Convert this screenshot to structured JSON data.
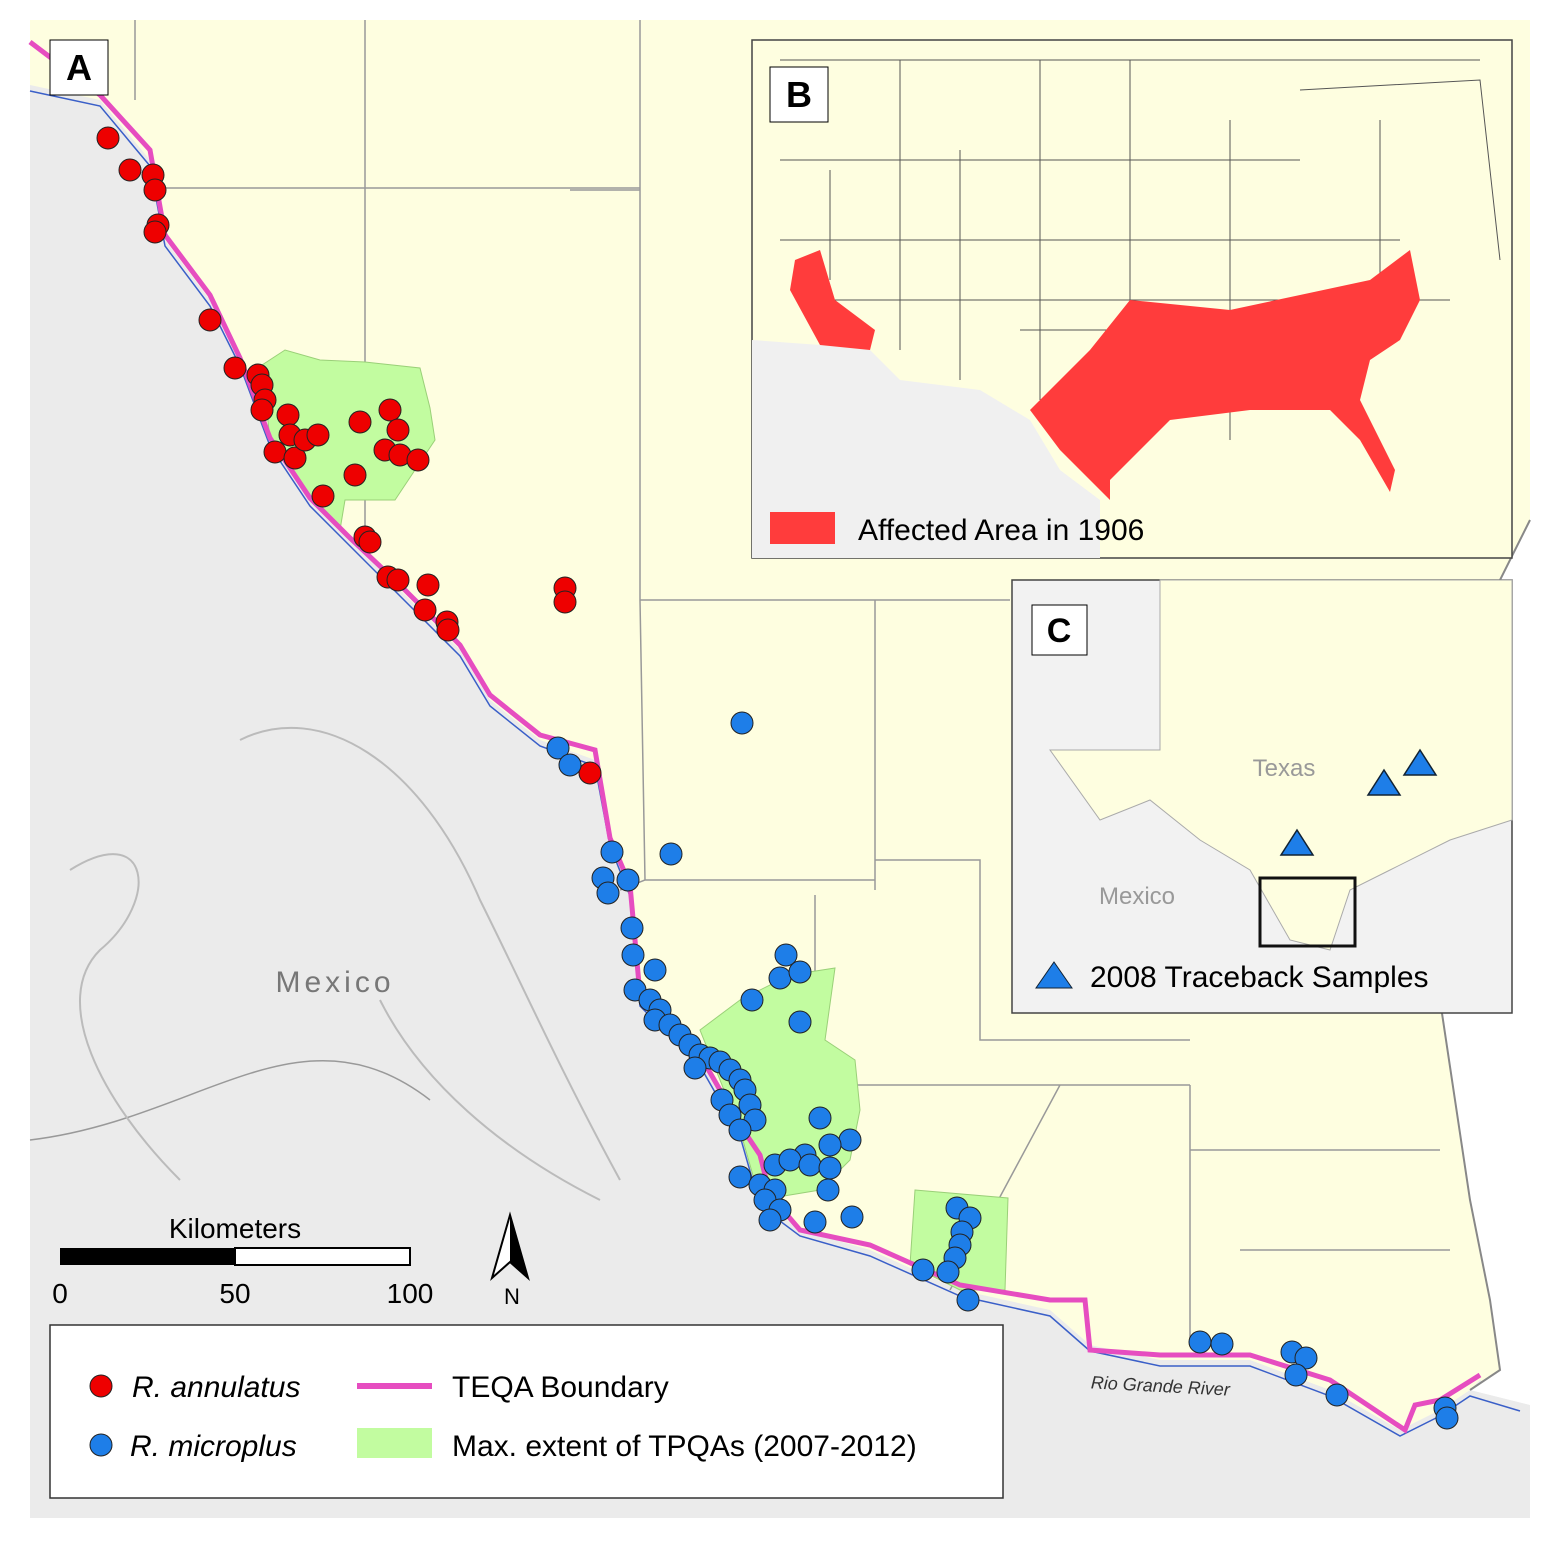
{
  "panels": {
    "a": {
      "label": "A",
      "country_label": "Mexico",
      "river_label": "Rio Grande River",
      "scale_bar": {
        "title": "Kilometers",
        "ticks": [
          "0",
          "50",
          "100"
        ]
      },
      "north_label": "N"
    },
    "b": {
      "label": "B",
      "legend": "Affected Area in 1906"
    },
    "c": {
      "label": "C",
      "texas_label": "Texas",
      "mexico_label": "Mexico",
      "legend": "2008 Traceback Samples"
    }
  },
  "legend": {
    "items": [
      "R. annulatus",
      "R. microplus",
      "TEQA Boundary",
      "Max. extent of TPQAs (2007-2012)"
    ]
  }
}
